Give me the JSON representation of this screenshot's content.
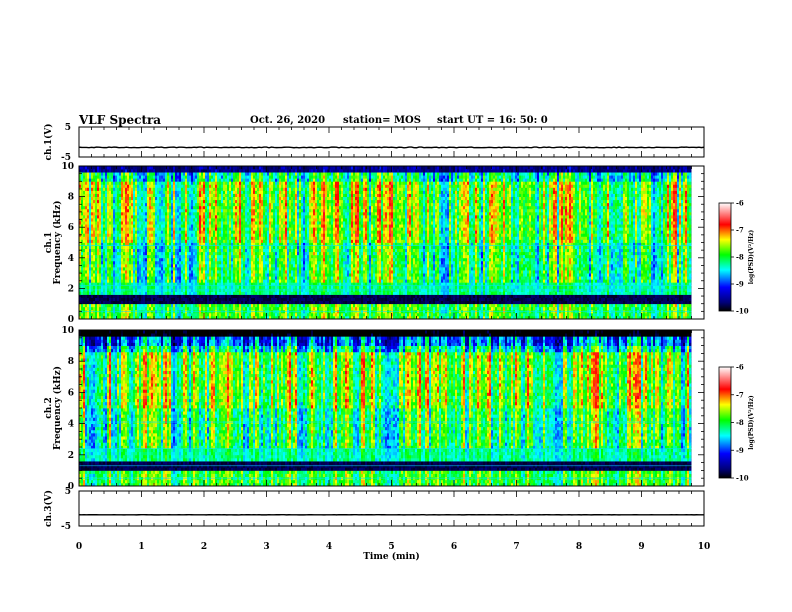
{
  "header": {
    "title": "VLF Spectra",
    "date": "Oct. 26, 2020",
    "station": "station= MOS",
    "start": "start  UT =   16: 50: 0"
  },
  "chart_data": [
    {
      "type": "line",
      "name": "ch1-waveform",
      "ylabel": "ch.1(V)",
      "ylim": [
        -5,
        5
      ],
      "yticks": [
        "5",
        "-5"
      ],
      "x": [
        0,
        10
      ],
      "y": [
        -1.8,
        -1.8
      ],
      "xlim": [
        0,
        10
      ]
    },
    {
      "type": "heatmap",
      "name": "ch1-spectrogram",
      "ylabel": "ch.1\nFrequency (kHz)",
      "ylim": [
        0,
        10
      ],
      "yticks": [
        "0",
        "2",
        "4",
        "6",
        "8",
        "10"
      ],
      "xlim": [
        0,
        10
      ],
      "data_xmax": 9.8,
      "colorbar": {
        "min": -10,
        "max": -6,
        "ticks": [
          "-6",
          "-7",
          "-8",
          "-9",
          "-10"
        ],
        "label": "log(PSD)(V²/Hz)"
      }
    },
    {
      "type": "heatmap",
      "name": "ch2-spectrogram",
      "ylabel": "ch.2\nFrequency (kHz)",
      "ylim": [
        0,
        10
      ],
      "yticks": [
        "0",
        "2",
        "4",
        "6",
        "8",
        "10"
      ],
      "xlim": [
        0,
        10
      ],
      "data_xmax": 9.8,
      "colorbar": {
        "min": -10,
        "max": -6,
        "ticks": [
          "-6",
          "-7",
          "-8",
          "-9",
          "-10"
        ],
        "label": "log(PSD)(V²/Hz)"
      }
    },
    {
      "type": "line",
      "name": "ch3-waveform",
      "ylabel": "ch.3(V)",
      "ylim": [
        -5,
        5
      ],
      "yticks": [
        "5",
        "-5"
      ],
      "x": [
        0,
        10
      ],
      "y": [
        -1.8,
        -1.8
      ],
      "xlim": [
        0,
        10
      ],
      "xlabel": "Time (min)",
      "xticks": [
        "0",
        "1",
        "2",
        "3",
        "4",
        "5",
        "6",
        "7",
        "8",
        "9",
        "10"
      ]
    }
  ]
}
